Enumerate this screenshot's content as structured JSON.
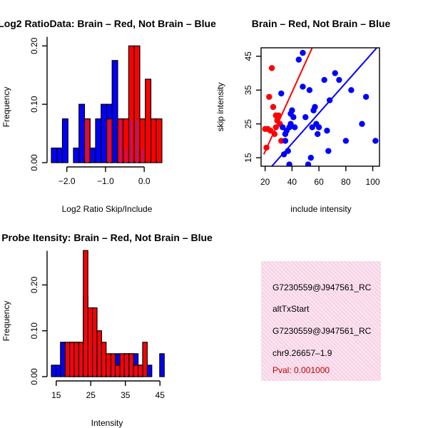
{
  "chart_data": [
    {
      "type": "bar",
      "title": "Log2 RatioData: Brain – Red, Not Brain – Blue",
      "xlabel": "Log2 Ratio Skip/Include",
      "ylabel": "Frequency",
      "xlim": [
        -2.4,
        0.55
      ],
      "ylim": [
        0,
        0.22
      ],
      "xticks": [
        -2.0,
        -1.0,
        0.0
      ],
      "xtick_labels": [
        "−2.0",
        "−1.0",
        "0.0"
      ],
      "yticks": [
        0.0,
        0.1,
        0.2
      ],
      "ytick_labels": [
        "0.00",
        "0.10",
        "0.20"
      ],
      "bin_width": 0.143,
      "series": [
        {
          "name": "Not Brain",
          "color": "#0000ff",
          "bins": [
            [
              -2.4,
              0.025
            ],
            [
              -2.257,
              0.025
            ],
            [
              -2.114,
              0.075
            ],
            [
              -1.829,
              0.025
            ],
            [
              -1.686,
              0.1
            ],
            [
              -1.543,
              0.075
            ],
            [
              -1.4,
              0.025
            ],
            [
              -1.257,
              0.075
            ],
            [
              -1.114,
              0.1
            ],
            [
              -0.971,
              0.1
            ],
            [
              -0.829,
              0.175
            ],
            [
              -0.686,
              0.075
            ],
            [
              -0.543,
              0.025
            ],
            [
              -0.4,
              0.075
            ],
            [
              -0.257,
              0.075
            ],
            [
              -0.114,
              0.025
            ]
          ]
        },
        {
          "name": "Brain",
          "color": "#ff0000",
          "bins": [
            [
              -1.543,
              0.075
            ],
            [
              -0.971,
              0.075
            ],
            [
              -0.686,
              0.075
            ],
            [
              -0.543,
              0.075
            ],
            [
              -0.4,
              0.2
            ],
            [
              -0.257,
              0.2
            ],
            [
              -0.114,
              0.075
            ],
            [
              0.029,
              0.143
            ],
            [
              0.171,
              0.075
            ],
            [
              0.314,
              0.075
            ]
          ]
        }
      ]
    },
    {
      "type": "scatter",
      "title": "Brain – Red, Not Brain – Blue",
      "xlabel": "include intensity",
      "ylabel": "skip intensity",
      "xlim": [
        17,
        105
      ],
      "ylim": [
        12.5,
        47.5
      ],
      "xticks": [
        20,
        40,
        60,
        80,
        100
      ],
      "yticks": [
        15,
        25,
        35,
        45
      ],
      "series": [
        {
          "name": "Brain",
          "color": "#ff0000",
          "points": [
            [
              20,
              23.5
            ],
            [
              21,
              18
            ],
            [
              22,
              23.5
            ],
            [
              23,
              33
            ],
            [
              24,
              23
            ],
            [
              25,
              41.5
            ],
            [
              26,
              30
            ],
            [
              27,
              22
            ],
            [
              28,
              27.5
            ],
            [
              28,
              24
            ],
            [
              29,
              26
            ],
            [
              30,
              27.5
            ],
            [
              31,
              25
            ],
            [
              32,
              20
            ]
          ],
          "fit": [
            [
              19,
              16
            ],
            [
              55,
              47.5
            ]
          ]
        },
        {
          "name": "Not Brain",
          "color": "#0000ff",
          "points": [
            [
              32,
              34
            ],
            [
              33,
              24
            ],
            [
              34,
              16
            ],
            [
              35,
              20
            ],
            [
              35,
              22
            ],
            [
              36,
              23
            ],
            [
              37,
              17
            ],
            [
              38,
              13
            ],
            [
              38,
              24
            ],
            [
              39,
              25
            ],
            [
              39,
              28
            ],
            [
              40,
              29
            ],
            [
              41,
              27
            ],
            [
              42,
              24
            ],
            [
              45,
              44
            ],
            [
              48,
              46
            ],
            [
              48,
              36
            ],
            [
              50,
              27
            ],
            [
              52,
              13
            ],
            [
              53,
              35
            ],
            [
              54,
              15
            ],
            [
              55,
              24
            ],
            [
              56,
              29
            ],
            [
              57,
              30
            ],
            [
              58,
              25
            ],
            [
              59,
              22
            ],
            [
              60,
              24
            ],
            [
              64,
              38
            ],
            [
              66,
              23
            ],
            [
              67,
              17
            ],
            [
              68,
              32
            ],
            [
              72,
              40
            ],
            [
              75,
              38
            ],
            [
              80,
              20
            ],
            [
              84,
              35
            ],
            [
              92,
              25
            ],
            [
              95,
              33
            ],
            [
              102,
              20
            ]
          ],
          "fit": [
            [
              25,
              12.5
            ],
            [
              103,
              47.5
            ]
          ]
        }
      ]
    },
    {
      "type": "bar",
      "title": "Probe Itensity: Brain – Red, Not Brain – Blue",
      "xlabel": "Intensity",
      "ylabel": "Frequency",
      "xlim": [
        13.6,
        46.6
      ],
      "ylim": [
        0,
        0.28
      ],
      "xticks": [
        15,
        25,
        35,
        45
      ],
      "yticks": [
        0.0,
        0.1,
        0.2
      ],
      "ytick_labels": [
        "0.00",
        "0.10",
        "0.20"
      ],
      "bin_width": 1.32,
      "series": [
        {
          "name": "Not Brain",
          "color": "#0000ff",
          "bins": [
            [
              13.6,
              0.025
            ],
            [
              14.92,
              0.025
            ],
            [
              16.24,
              0.075
            ],
            [
              18.88,
              0.075
            ],
            [
              20.2,
              0.075
            ],
            [
              21.52,
              0.05
            ],
            [
              22.84,
              0.175
            ],
            [
              24.16,
              0.125
            ],
            [
              25.48,
              0.075
            ],
            [
              26.8,
              0.075
            ],
            [
              28.12,
              0.05
            ],
            [
              29.44,
              0.025
            ],
            [
              30.76,
              0.025
            ],
            [
              32.08,
              0.05
            ],
            [
              33.4,
              0.025
            ],
            [
              34.72,
              0.05
            ],
            [
              36.04,
              0.05
            ],
            [
              37.36,
              0.05
            ],
            [
              38.68,
              0.025
            ],
            [
              41.32,
              0.025
            ],
            [
              44.92,
              0.05
            ]
          ]
        },
        {
          "name": "Brain",
          "color": "#ff0000",
          "bins": [
            [
              17.56,
              0.075
            ],
            [
              18.88,
              0.075
            ],
            [
              20.2,
              0.075
            ],
            [
              21.52,
              0.075
            ],
            [
              22.84,
              0.275
            ],
            [
              24.16,
              0.15
            ],
            [
              25.48,
              0.15
            ],
            [
              26.8,
              0.1
            ],
            [
              28.12,
              0.075
            ],
            [
              29.44,
              0.05
            ],
            [
              30.76,
              0.05
            ],
            [
              32.08,
              0.025
            ],
            [
              33.4,
              0.05
            ],
            [
              34.72,
              0.05
            ],
            [
              36.04,
              0.05
            ],
            [
              37.36,
              0.025
            ],
            [
              38.68,
              0.025
            ],
            [
              40.0,
              0.075
            ]
          ]
        }
      ]
    }
  ],
  "info": {
    "probe_id": "G7230559@J947561_RC",
    "event_type": "altTxStart",
    "probe_id_2": "G7230559@J947561_RC",
    "location": "chr9.26657–1.9",
    "pval": "Pval: 0.001000"
  }
}
